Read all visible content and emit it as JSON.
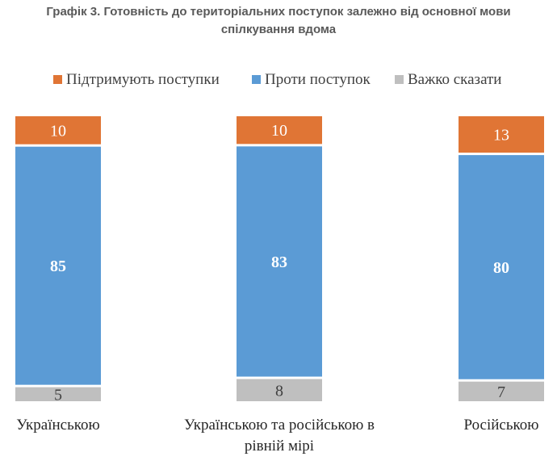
{
  "title": {
    "line1": "Графік 3. Готовність до територіальних поступок залежно від основної мови",
    "line2": "спілкування вдома"
  },
  "colors": {
    "support": "#E07535",
    "against": "#5B9BD5",
    "hard": "#BFBFBF",
    "title": "#595959"
  },
  "chart_data": {
    "type": "bar",
    "stacked": true,
    "categories": [
      "Українською",
      "Українською та російською в рівній мірі",
      "Російською"
    ],
    "series": [
      {
        "name": "Підтримують поступки",
        "values": [
          10,
          10,
          13
        ]
      },
      {
        "name": "Проти поступок",
        "values": [
          85,
          83,
          80
        ]
      },
      {
        "name": "Важко сказати",
        "values": [
          5,
          8,
          7
        ]
      }
    ],
    "legend_position": "top",
    "ylim": [
      0,
      100
    ],
    "grid": false
  }
}
